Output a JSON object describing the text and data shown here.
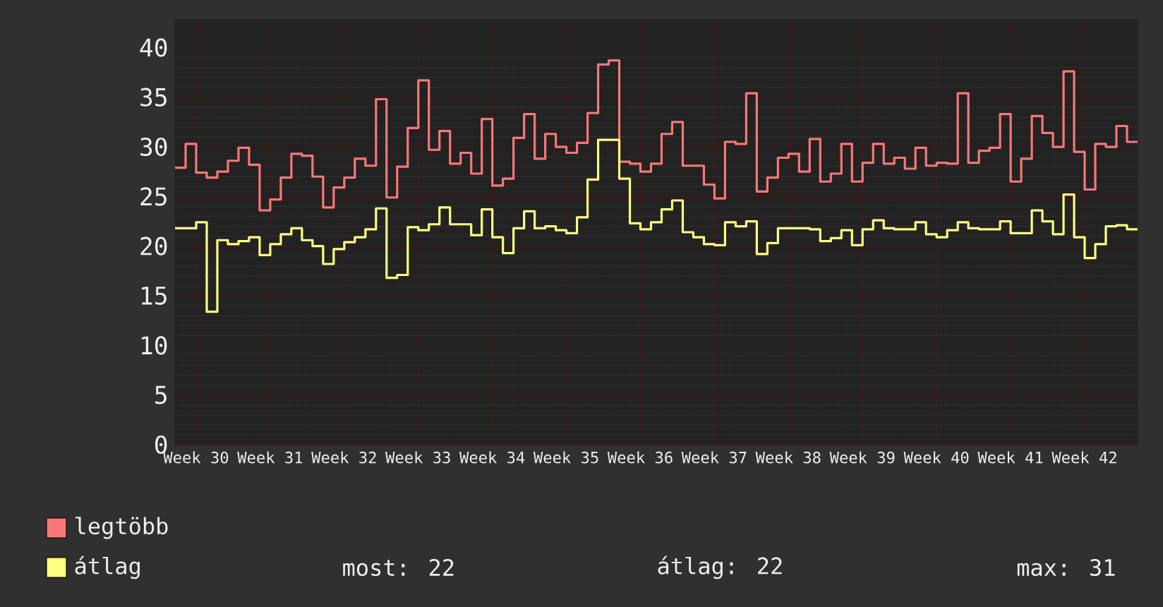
{
  "chart_data": {
    "type": "step",
    "categories": [
      null,
      null,
      "Week 30",
      null,
      null,
      null,
      null,
      null,
      null,
      "Week 31",
      null,
      null,
      null,
      null,
      null,
      null,
      "Week 32",
      null,
      null,
      null,
      null,
      null,
      null,
      "Week 33",
      null,
      null,
      null,
      null,
      null,
      null,
      "Week 34",
      null,
      null,
      null,
      null,
      null,
      null,
      "Week 35",
      null,
      null,
      null,
      null,
      null,
      null,
      "Week 36",
      null,
      null,
      null,
      null,
      null,
      null,
      "Week 37",
      null,
      null,
      null,
      null,
      null,
      null,
      "Week 38",
      null,
      null,
      null,
      null,
      null,
      null,
      "Week 39",
      null,
      null,
      null,
      null,
      null,
      null,
      "Week 40",
      null,
      null,
      null,
      null,
      null,
      null,
      "Week 41",
      null,
      null,
      null,
      null,
      null,
      null,
      "Week 42",
      null,
      null,
      null,
      null,
      null
    ],
    "series": [
      {
        "name": "legtöbb",
        "color": "#f87878",
        "values": [
          27.9,
          30.3,
          27.4,
          26.9,
          27.5,
          28.6,
          29.9,
          28.2,
          23.6,
          24.7,
          26.9,
          29.3,
          29.1,
          27.0,
          23.9,
          25.9,
          26.9,
          28.8,
          28.1,
          34.8,
          24.9,
          28.0,
          31.9,
          36.7,
          29.7,
          31.6,
          28.3,
          29.4,
          27.3,
          32.8,
          26.1,
          26.8,
          30.9,
          33.3,
          28.8,
          31.3,
          30.0,
          29.4,
          30.4,
          33.4,
          38.3,
          38.7,
          28.5,
          28.3,
          27.5,
          28.3,
          31.3,
          32.5,
          28.1,
          28.1,
          26.2,
          24.8,
          30.5,
          30.3,
          35.4,
          25.5,
          26.9,
          28.9,
          29.3,
          27.5,
          30.8,
          26.5,
          27.3,
          30.3,
          26.5,
          28.4,
          30.3,
          28.3,
          28.9,
          27.8,
          29.9,
          28.1,
          28.4,
          28.3,
          35.4,
          28.4,
          29.6,
          29.9,
          33.3,
          26.5,
          28.8,
          33.1,
          31.4,
          30.0,
          37.6,
          29.5,
          25.7,
          30.3,
          30.0,
          32.1,
          30.5,
          30.5
        ]
      },
      {
        "name": "átlag",
        "color": "#ffff80",
        "values": [
          21.8,
          21.8,
          22.4,
          13.4,
          20.6,
          20.2,
          20.5,
          20.9,
          19.1,
          20.2,
          21.2,
          21.8,
          20.6,
          20.0,
          18.2,
          19.7,
          20.4,
          20.9,
          21.7,
          23.8,
          16.8,
          17.1,
          21.9,
          21.6,
          22.2,
          23.9,
          22.2,
          22.2,
          21.1,
          23.7,
          20.9,
          19.3,
          21.8,
          23.5,
          21.8,
          22.0,
          21.6,
          21.3,
          22.9,
          26.7,
          30.7,
          30.7,
          26.8,
          22.3,
          21.7,
          22.4,
          23.7,
          24.6,
          21.4,
          20.9,
          20.2,
          20.1,
          22.4,
          22.0,
          22.5,
          19.2,
          20.3,
          21.8,
          21.8,
          21.8,
          21.7,
          20.5,
          20.8,
          21.6,
          20.1,
          21.7,
          22.6,
          21.8,
          21.7,
          21.7,
          22.4,
          21.2,
          20.9,
          21.6,
          22.4,
          21.8,
          21.7,
          21.7,
          22.5,
          21.3,
          21.3,
          23.6,
          22.5,
          21.2,
          25.2,
          20.9,
          18.8,
          20.2,
          22.0,
          22.1,
          21.7,
          21.7
        ]
      }
    ],
    "ylim": [
      0,
      42.8
    ],
    "yticks": [
      0,
      5,
      10,
      15,
      20,
      25,
      30,
      35,
      40
    ],
    "grid": true,
    "legend": "bottom left",
    "annotations": [
      "most: 22",
      "átlag: 22",
      "max: 31"
    ]
  }
}
